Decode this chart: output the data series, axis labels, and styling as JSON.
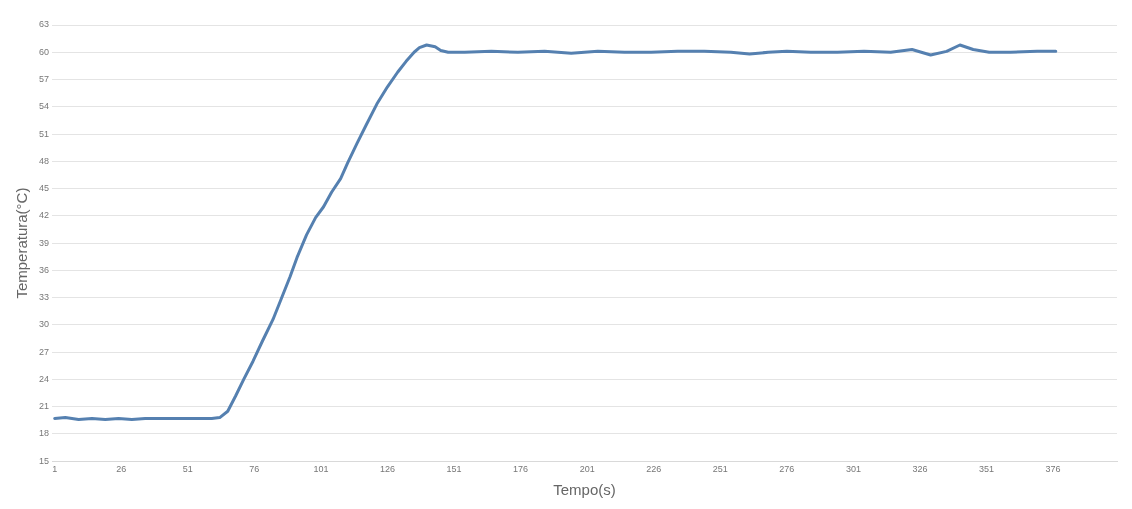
{
  "chart_data": {
    "type": "line",
    "xlabel": "Tempo(s)",
    "ylabel": "Temperatura(°C)",
    "xlim": [
      0,
      400
    ],
    "xticks": [
      1,
      26,
      51,
      76,
      101,
      126,
      151,
      176,
      201,
      226,
      251,
      276,
      301,
      326,
      351,
      376
    ],
    "ylim": [
      15,
      63
    ],
    "yticks": [
      15,
      18,
      21,
      24,
      27,
      30,
      33,
      36,
      39,
      42,
      45,
      48,
      51,
      54,
      57,
      60,
      63
    ],
    "grid": "y",
    "marker": "none",
    "line_style": "solid",
    "series": [
      {
        "color": "#5580b0",
        "x": [
          1,
          5,
          10,
          15,
          20,
          25,
          30,
          35,
          40,
          45,
          50,
          55,
          60,
          63,
          66,
          69,
          72,
          75.5,
          79,
          83,
          86,
          89.4,
          92,
          95.6,
          99,
          102,
          105,
          108.4,
          111,
          114.6,
          118,
          122,
          126,
          129.8,
          133,
          136,
          138,
          140.7,
          143.9,
          146,
          148.8,
          155,
          165,
          175,
          185,
          195,
          205,
          215,
          225,
          235,
          245,
          255,
          262,
          269,
          276,
          285,
          295,
          305,
          315,
          323,
          330,
          336,
          341,
          346,
          352,
          360,
          370,
          377
        ],
        "values": [
          19.7,
          19.8,
          19.6,
          19.7,
          19.6,
          19.7,
          19.6,
          19.7,
          19.7,
          19.7,
          19.7,
          19.7,
          19.7,
          19.8,
          20.5,
          22.2,
          24,
          26,
          28.2,
          30.6,
          32.8,
          35.3,
          37.4,
          39.9,
          41.8,
          43,
          44.6,
          46.1,
          47.8,
          50,
          52,
          54.3,
          56.2,
          57.8,
          59,
          60,
          60.5,
          60.8,
          60.6,
          60.2,
          60,
          60,
          60.1,
          60,
          60.1,
          59.9,
          60.1,
          60,
          60,
          60.1,
          60.1,
          60,
          59.8,
          60,
          60.1,
          60,
          60,
          60.1,
          60,
          60.3,
          59.7,
          60.1,
          60.8,
          60.3,
          60,
          60,
          60.1,
          60.1
        ]
      }
    ]
  }
}
